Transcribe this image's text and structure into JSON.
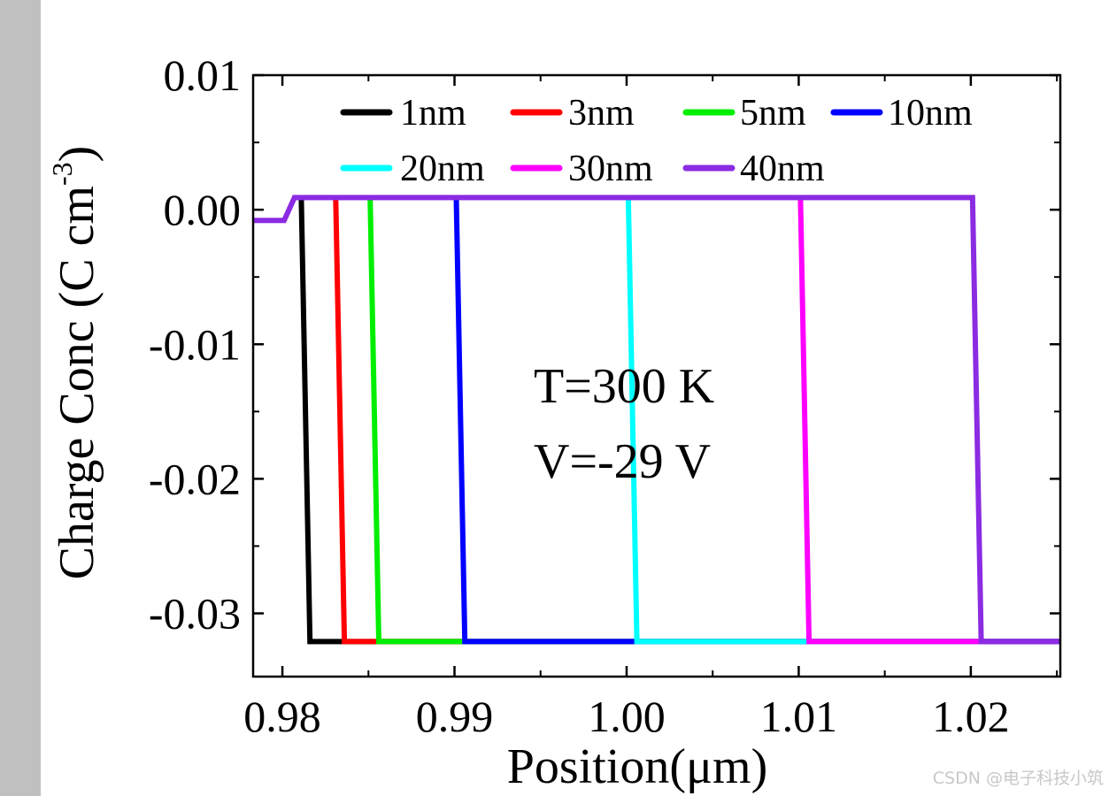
{
  "chart_data": {
    "type": "line",
    "xlabel": "Position(μm)",
    "ylabel": "Charge Conc (C cm",
    "ylabel_superscript": "-3",
    "xlim": [
      0.9783,
      1.0252
    ],
    "ylim": [
      -0.0347,
      0.01
    ],
    "x_ticks": [
      0.98,
      0.99,
      1.0,
      1.01,
      1.02
    ],
    "x_tick_labels": [
      "0.98",
      "0.99",
      "1.00",
      "1.01",
      "1.02"
    ],
    "y_ticks": [
      0.01,
      0.0,
      -0.01,
      -0.02,
      -0.03
    ],
    "y_tick_labels": [
      "0.01",
      "0.00",
      "-0.01",
      "-0.02",
      "-0.03"
    ],
    "legend_position": "top",
    "series": [
      {
        "name": "1nm",
        "color": "#000000",
        "x": [
          0.9811,
          0.9816
        ],
        "y": [
          0.0009,
          -0.0321
        ]
      },
      {
        "name": "3nm",
        "color": "#ff0000",
        "x": [
          0.9831,
          0.9836
        ],
        "y": [
          0.0009,
          -0.0321
        ]
      },
      {
        "name": "5nm",
        "color": "#00ee00",
        "x": [
          0.9851,
          0.9856
        ],
        "y": [
          0.0009,
          -0.0321
        ]
      },
      {
        "name": "10nm",
        "color": "#0000ff",
        "x": [
          0.9901,
          0.9906
        ],
        "y": [
          0.0009,
          -0.0321
        ]
      },
      {
        "name": "20nm",
        "color": "#00ffff",
        "x": [
          1.0001,
          1.0006
        ],
        "y": [
          0.0009,
          -0.0321
        ]
      },
      {
        "name": "30nm",
        "color": "#ff00ff",
        "x": [
          1.0101,
          1.0106
        ],
        "y": [
          0.0009,
          -0.0321
        ]
      },
      {
        "name": "40nm",
        "color": "#8b2be2",
        "x": [
          0.9783,
          0.9801,
          0.9807,
          1.0201,
          1.0206,
          1.0252
        ],
        "y": [
          -0.0008,
          -0.0008,
          0.0009,
          0.0009,
          -0.0321,
          -0.0321
        ]
      }
    ],
    "annotations": [
      "T=300 K",
      "V=-29 V"
    ]
  },
  "watermark": "CSDN @电子科技小筑"
}
